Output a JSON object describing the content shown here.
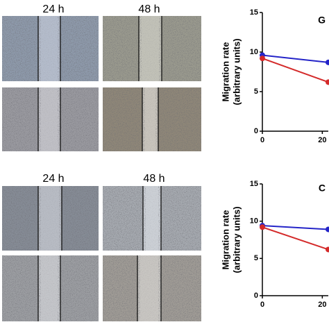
{
  "figure": {
    "panels": [
      {
        "labels": [
          "24 h",
          "48 h"
        ]
      },
      {
        "labels": [
          "24 h",
          "48 h"
        ]
      }
    ]
  },
  "chart_data": [
    {
      "type": "line",
      "title": "G",
      "y_label": [
        "Migration rate",
        "(arbitrary units)"
      ],
      "x": [
        0,
        22
      ],
      "series": [
        {
          "color": "#2424c8",
          "values": [
            9.6,
            8.7
          ]
        },
        {
          "color": "#d42a2a",
          "values": [
            9.2,
            6.2
          ]
        }
      ],
      "xlim": [
        0,
        22
      ],
      "ylim": [
        0,
        15
      ],
      "xticks": [
        0,
        20
      ],
      "yticks": [
        0,
        5,
        10,
        15
      ]
    },
    {
      "type": "line",
      "title": "C",
      "y_label": [
        "Migration rate",
        "(arbitrary units)"
      ],
      "x": [
        0,
        22
      ],
      "series": [
        {
          "color": "#2424c8",
          "values": [
            9.4,
            8.9
          ]
        },
        {
          "color": "#d42a2a",
          "values": [
            9.2,
            6.2
          ]
        }
      ],
      "xlim": [
        0,
        22
      ],
      "ylim": [
        0,
        15
      ],
      "xticks": [
        0,
        20
      ],
      "yticks": [
        0,
        5,
        10,
        15
      ]
    }
  ]
}
